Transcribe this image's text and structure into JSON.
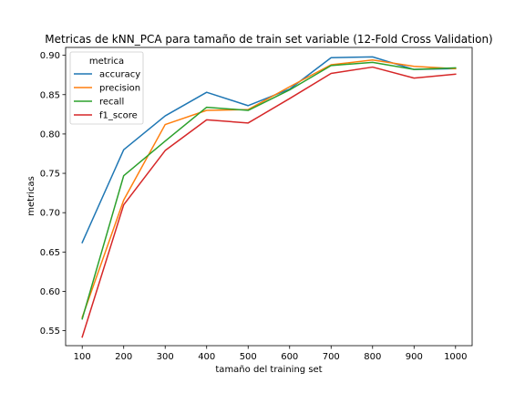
{
  "chart_data": {
    "type": "line",
    "title": "Metricas de kNN_PCA para tamaño de train set variable (12-Fold Cross Validation)",
    "xlabel": "tamaño del training set",
    "ylabel": "metricas",
    "x": [
      100,
      200,
      300,
      400,
      500,
      600,
      700,
      800,
      900,
      1000
    ],
    "xticks": [
      "100",
      "200",
      "300",
      "400",
      "500",
      "600",
      "700",
      "800",
      "900",
      "1000"
    ],
    "yticks": [
      "0.55",
      "0.60",
      "0.65",
      "0.70",
      "0.75",
      "0.80",
      "0.85",
      "0.90"
    ],
    "xlim": [
      60,
      1040
    ],
    "ylim": [
      0.531,
      0.91
    ],
    "grid": false,
    "legend": {
      "title": "metrica",
      "placement": "top-left"
    },
    "series": [
      {
        "name": "accuracy",
        "color": "#1f77b4",
        "values": [
          0.662,
          0.78,
          0.823,
          0.853,
          0.836,
          0.857,
          0.897,
          0.898,
          0.882,
          0.883
        ]
      },
      {
        "name": "precision",
        "color": "#ff7f0e",
        "values": [
          0.567,
          0.716,
          0.812,
          0.83,
          0.831,
          0.86,
          0.888,
          0.894,
          0.886,
          0.883
        ]
      },
      {
        "name": "recall",
        "color": "#2ca02c",
        "values": [
          0.565,
          0.747,
          0.791,
          0.834,
          0.83,
          0.856,
          0.887,
          0.891,
          0.882,
          0.884
        ]
      },
      {
        "name": "f1_score",
        "color": "#d62728",
        "values": [
          0.542,
          0.71,
          0.779,
          0.818,
          0.814,
          0.845,
          0.877,
          0.885,
          0.871,
          0.876
        ]
      }
    ]
  }
}
